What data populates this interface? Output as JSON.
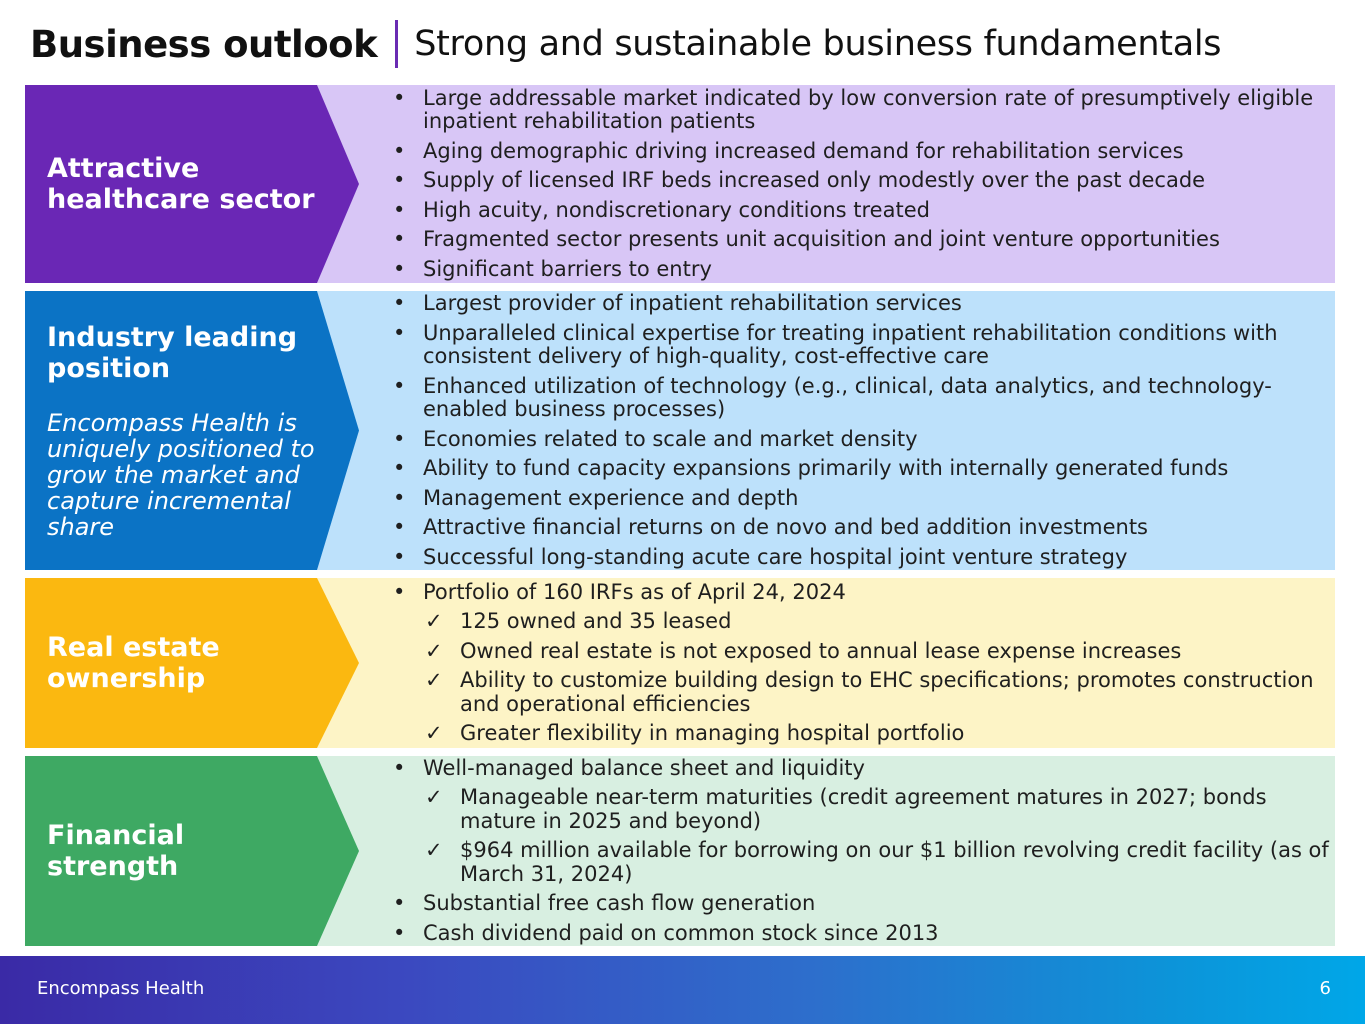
{
  "header": {
    "title": "Business outlook",
    "subtitle": "Strong and sustainable business fundamentals"
  },
  "sections": [
    {
      "heading": "Attractive healthcare sector",
      "color": "#6a27b5",
      "bg": "#d8c6f6",
      "items": [
        {
          "text": "Large addressable market indicated by low conversion rate of presumptively eligible inpatient rehabilitation patients",
          "type": "bullet"
        },
        {
          "text": "Aging demographic driving increased demand for rehabilitation services",
          "type": "bullet"
        },
        {
          "text": "Supply of licensed IRF beds increased only modestly over the past decade",
          "type": "bullet"
        },
        {
          "text": "High acuity, nondiscretionary conditions treated",
          "type": "bullet"
        },
        {
          "text": "Fragmented sector presents unit acquisition and joint venture opportunities",
          "type": "bullet"
        },
        {
          "text": "Significant barriers to entry",
          "type": "bullet"
        }
      ]
    },
    {
      "heading": "Industry leading position",
      "italic": "Encompass Health is uniquely positioned to grow the market and capture incremental share",
      "color": "#0b73c5",
      "bg": "#bde1fb",
      "items": [
        {
          "text": "Largest provider of inpatient rehabilitation services",
          "type": "bullet"
        },
        {
          "text": "Unparalleled clinical expertise for treating inpatient rehabilitation conditions with consistent delivery of high-quality, cost-effective care",
          "type": "bullet"
        },
        {
          "text": "Enhanced utilization of technology (e.g., clinical, data analytics, and technology-enabled business processes)",
          "type": "bullet"
        },
        {
          "text": "Economies related to scale and market density",
          "type": "bullet"
        },
        {
          "text": "Ability to fund capacity expansions primarily with internally generated funds",
          "type": "bullet"
        },
        {
          "text": "Management experience and depth",
          "type": "bullet"
        },
        {
          "text": "Attractive financial returns on de novo and bed addition investments",
          "type": "bullet"
        },
        {
          "text": "Successful long-standing acute care hospital joint venture strategy",
          "type": "bullet"
        }
      ]
    },
    {
      "heading": "Real estate ownership",
      "color": "#fbb810",
      "bg": "#fdf4c6",
      "items": [
        {
          "text": "Portfolio of 160 IRFs as of April 24, 2024",
          "type": "bullet"
        },
        {
          "text": "125 owned and 35 leased",
          "type": "check"
        },
        {
          "text": "Owned real estate is not exposed to annual lease expense increases",
          "type": "check"
        },
        {
          "text": "Ability to customize building design to EHC specifications; promotes construction and operational efficiencies",
          "type": "check"
        },
        {
          "text": "Greater flexibility in managing hospital portfolio",
          "type": "check"
        }
      ]
    },
    {
      "heading": "Financial strength",
      "color": "#3ea963",
      "bg": "#d8efe1",
      "items": [
        {
          "text": "Well-managed balance sheet and liquidity",
          "type": "bullet"
        },
        {
          "text": "Manageable near-term maturities (credit agreement matures in 2027; bonds mature in 2025 and beyond)",
          "type": "check"
        },
        {
          "text": "$964 million available for borrowing on our $1 billion revolving credit facility (as of March 31, 2024)",
          "type": "check"
        },
        {
          "text": "Substantial free cash flow generation",
          "type": "bullet"
        },
        {
          "text": "Cash dividend paid on common stock since 2013",
          "type": "bullet"
        }
      ]
    }
  ],
  "footer": {
    "brand": "Encompass Health",
    "page_number": "6"
  }
}
